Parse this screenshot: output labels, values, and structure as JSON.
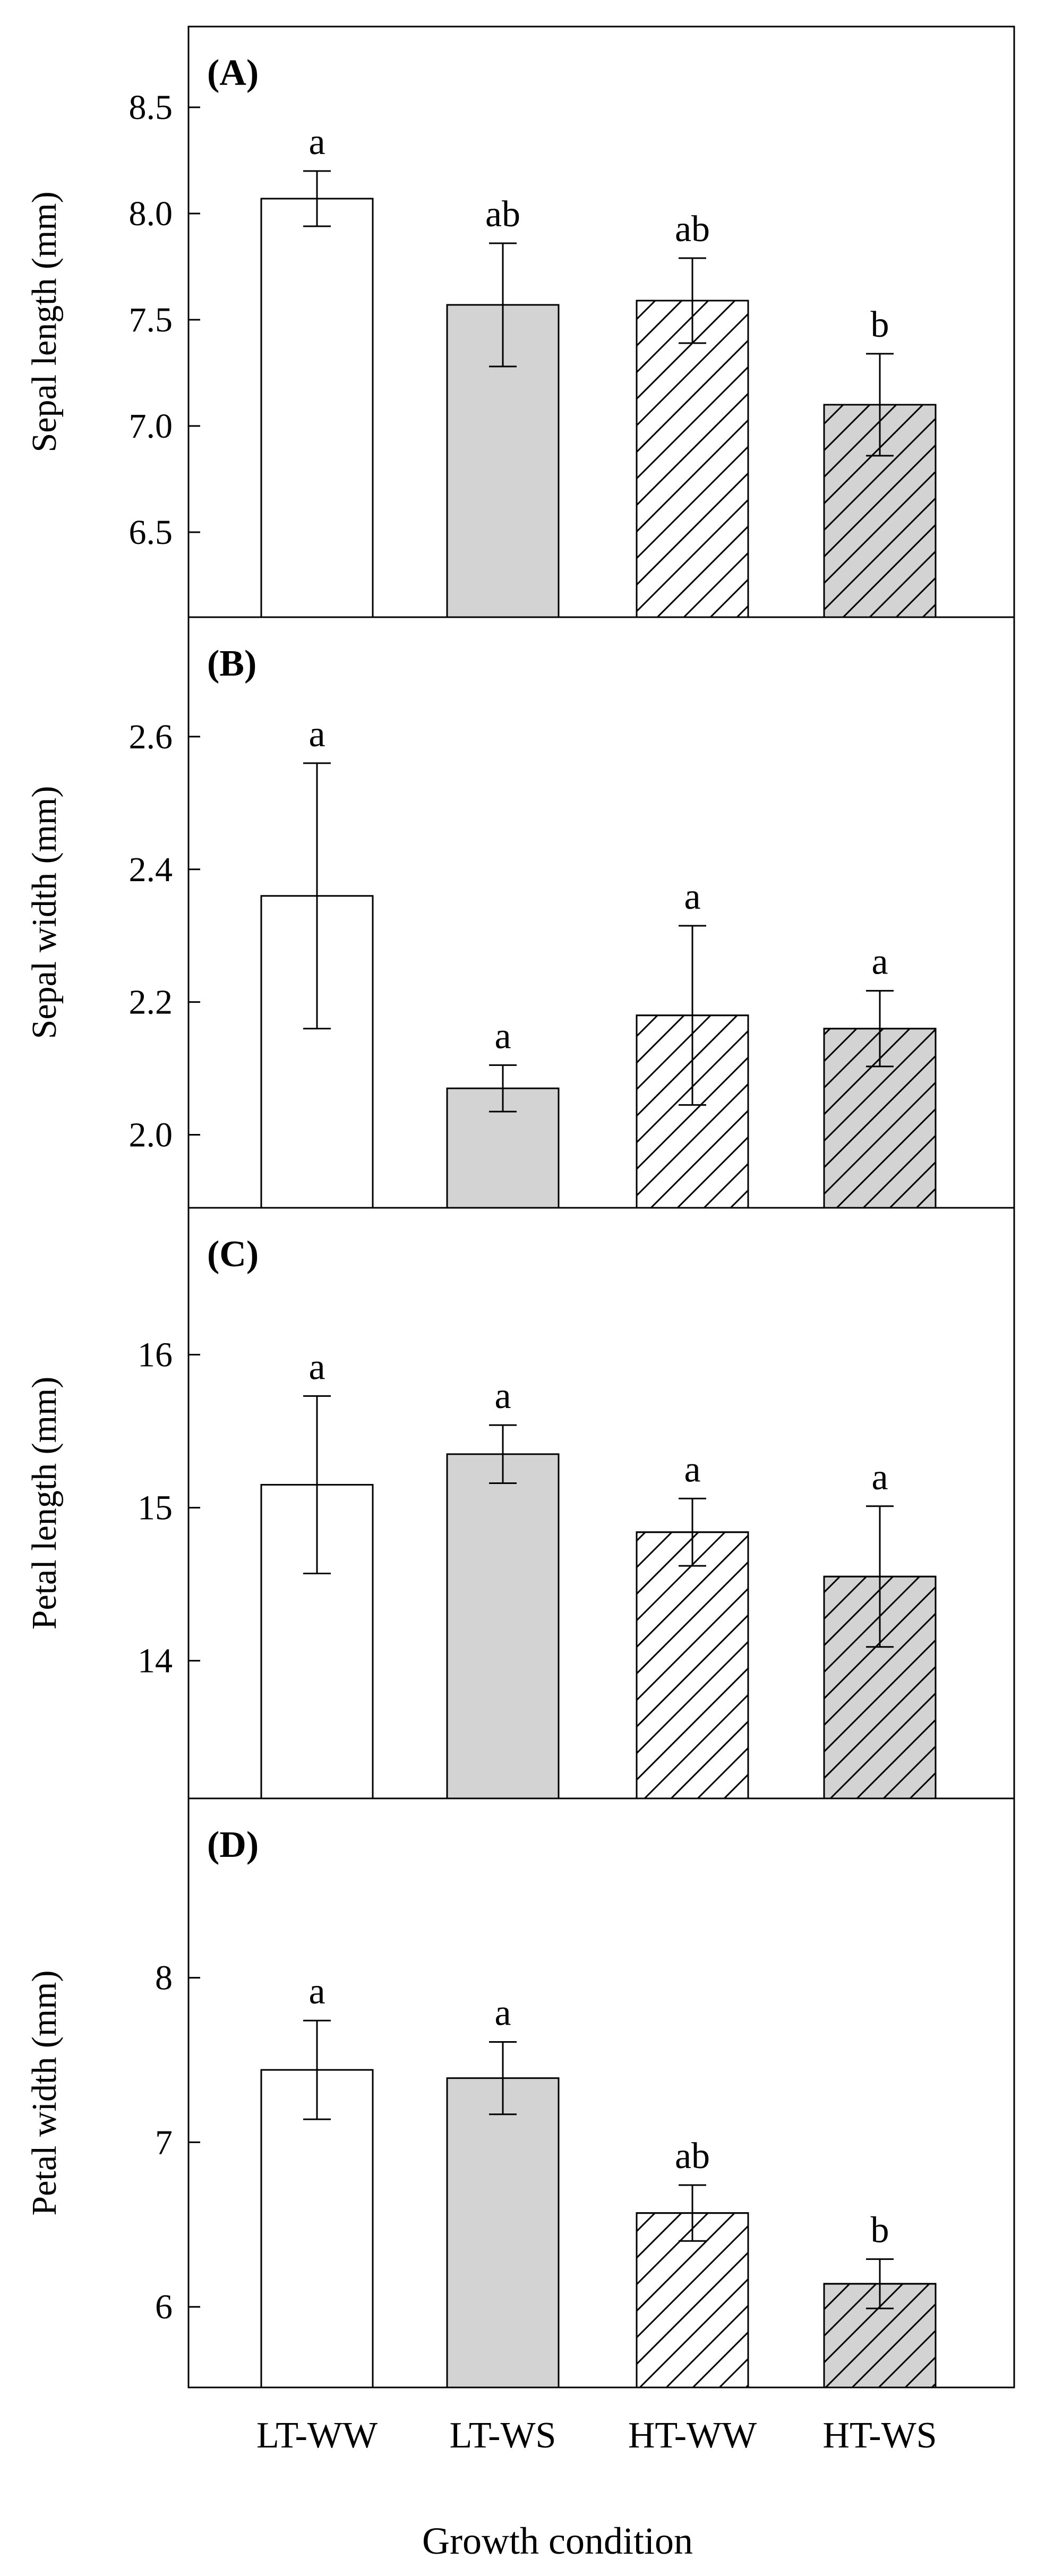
{
  "chart_data": [
    {
      "type": "bar",
      "panel_label": "(A)",
      "ylabel": "Sepal length (mm)",
      "categories": [
        "LT-WW",
        "LT-WS",
        "HT-WW",
        "HT-WS"
      ],
      "values": [
        8.07,
        7.57,
        7.59,
        7.1
      ],
      "errors": [
        0.13,
        0.29,
        0.2,
        0.24
      ],
      "significance": [
        "a",
        "ab",
        "ab",
        "b"
      ],
      "ylim": [
        6.1,
        8.88
      ],
      "yticks": [
        6.5,
        7.0,
        7.5,
        8.0,
        8.5
      ],
      "ytick_labels": [
        "6.5",
        "7.0",
        "7.5",
        "8.0",
        "8.5"
      ]
    },
    {
      "type": "bar",
      "panel_label": "(B)",
      "ylabel": "Sepal width (mm)",
      "categories": [
        "LT-WW",
        "LT-WS",
        "HT-WW",
        "HT-WS"
      ],
      "values": [
        2.36,
        2.07,
        2.18,
        2.16
      ],
      "errors": [
        0.2,
        0.035,
        0.135,
        0.057
      ],
      "significance": [
        "a",
        "a",
        "a",
        "a"
      ],
      "ylim": [
        1.89,
        2.78
      ],
      "yticks": [
        2.0,
        2.2,
        2.4,
        2.6
      ],
      "ytick_labels": [
        "2.0",
        "2.2",
        "2.4",
        "2.6"
      ]
    },
    {
      "type": "bar",
      "panel_label": "(C)",
      "ylabel": "Petal length (mm)",
      "categories": [
        "LT-WW",
        "LT-WS",
        "HT-WW",
        "HT-WS"
      ],
      "values": [
        15.15,
        15.35,
        14.84,
        14.55
      ],
      "errors": [
        0.58,
        0.19,
        0.22,
        0.46
      ],
      "significance": [
        "a",
        "a",
        "a",
        "a"
      ],
      "ylim": [
        13.1,
        16.96
      ],
      "yticks": [
        14,
        15,
        16
      ],
      "ytick_labels": [
        "14",
        "15",
        "16"
      ]
    },
    {
      "type": "bar",
      "panel_label": "(D)",
      "ylabel": "Petal width (mm)",
      "categories": [
        "LT-WW",
        "LT-WS",
        "HT-WW",
        "HT-WS"
      ],
      "values": [
        7.44,
        7.39,
        6.57,
        6.14
      ],
      "errors": [
        0.3,
        0.22,
        0.17,
        0.15
      ],
      "significance": [
        "a",
        "a",
        "ab",
        "b"
      ],
      "ylim": [
        5.51,
        9.09
      ],
      "yticks": [
        6,
        7,
        8
      ],
      "ytick_labels": [
        "6",
        "7",
        "8"
      ]
    }
  ],
  "xlabel": "Growth condition",
  "bar_styles": [
    {
      "fill": "#ffffff",
      "hatch": false
    },
    {
      "fill": "#d3d3d3",
      "hatch": false
    },
    {
      "fill": "#ffffff",
      "hatch": true
    },
    {
      "fill": "#d3d3d3",
      "hatch": true
    }
  ]
}
